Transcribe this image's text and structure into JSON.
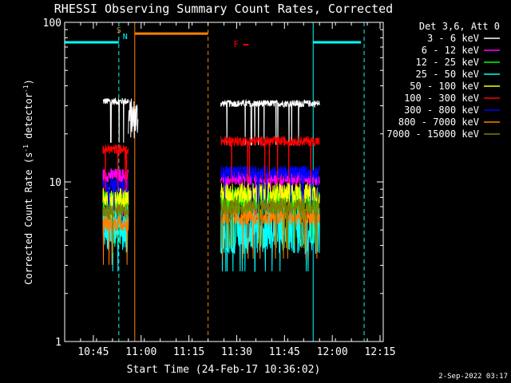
{
  "chart_data": {
    "type": "line",
    "title": "RHESSI Observing Summary Count Rates, Corrected",
    "xlabel": "Start Time (24-Feb-17 10:36:02)",
    "ylabel_main": "Corrected Count Rate (s",
    "ylabel_sup1": "-1",
    "ylabel_mid": " detector",
    "ylabel_sup2": "-1",
    "ylabel_end": ")",
    "yscale": "log",
    "ylim": [
      1,
      100
    ],
    "xlim": [
      "10:36",
      "12:16"
    ],
    "grid": false,
    "legend_placement": "top-right",
    "x_tick_labels": [
      "10:45",
      "11:00",
      "11:15",
      "11:30",
      "11:45",
      "12:00",
      "12:15"
    ],
    "y_tick_labels": [
      "1",
      "10",
      "100"
    ],
    "legend_header": "Det 3,6, Att 0",
    "series": [
      {
        "name": "3 - 6 keV",
        "color": "#ffffff",
        "segments": [
          {
            "x0": "10:48",
            "x1": "10:56",
            "level": 32,
            "noise": 0.05
          },
          {
            "x0": "10:56",
            "x1": "10:59",
            "level": 25,
            "noise": 0.3
          },
          {
            "x0": "11:25",
            "x1": "11:56",
            "level": 31,
            "noise": 0.05
          }
        ]
      },
      {
        "name": "6 - 12 keV",
        "color": "#ff00ff",
        "segments": [
          {
            "x0": "10:48",
            "x1": "10:56",
            "level": 11,
            "noise": 0.1
          },
          {
            "x0": "11:25",
            "x1": "11:56",
            "level": 10.5,
            "noise": 0.1
          }
        ]
      },
      {
        "name": "12 - 25 keV",
        "color": "#00ff00",
        "segments": [
          {
            "x0": "10:48",
            "x1": "10:56",
            "level": 7.5,
            "noise": 0.2
          },
          {
            "x0": "11:25",
            "x1": "11:56",
            "level": 7.5,
            "noise": 0.22
          }
        ]
      },
      {
        "name": "25 - 50 keV",
        "color": "#00ffff",
        "segments": [
          {
            "x0": "10:48",
            "x1": "10:56",
            "level": 5,
            "noise": 0.35
          },
          {
            "x0": "11:25",
            "x1": "11:56",
            "level": 5,
            "noise": 0.35
          }
        ]
      },
      {
        "name": "50 - 100 keV",
        "color": "#ffff00",
        "segments": [
          {
            "x0": "10:48",
            "x1": "10:56",
            "level": 8,
            "noise": 0.15
          },
          {
            "x0": "11:25",
            "x1": "11:56",
            "level": 8.5,
            "noise": 0.15
          }
        ]
      },
      {
        "name": "100 - 300 keV",
        "color": "#ff0000",
        "segments": [
          {
            "x0": "10:48",
            "x1": "10:56",
            "level": 16,
            "noise": 0.07
          },
          {
            "x0": "11:25",
            "x1": "11:56",
            "level": 18,
            "noise": 0.07
          }
        ]
      },
      {
        "name": "300 - 800 keV",
        "color": "#0000ff",
        "segments": [
          {
            "x0": "10:48",
            "x1": "10:56",
            "level": 9.5,
            "noise": 0.1
          },
          {
            "x0": "11:25",
            "x1": "11:56",
            "level": 11.5,
            "noise": 0.1
          }
        ]
      },
      {
        "name": "800 - 7000 keV",
        "color": "#ff8000",
        "segments": [
          {
            "x0": "10:48",
            "x1": "10:56",
            "level": 5.5,
            "noise": 0.12
          },
          {
            "x0": "11:25",
            "x1": "11:56",
            "level": 6,
            "noise": 0.12
          }
        ]
      },
      {
        "name": "7000 - 15000 keV",
        "color": "#808000",
        "segments": [
          {
            "x0": "10:48",
            "x1": "10:56",
            "level": 6.5,
            "noise": 0.12
          },
          {
            "x0": "11:25",
            "x1": "11:56",
            "level": 7,
            "noise": 0.12
          }
        ]
      }
    ],
    "annotations": {
      "cyan_bars": [
        {
          "x0": "10:36",
          "x1": "10:53",
          "level": 75
        },
        {
          "x0": "11:54",
          "x1": "12:09",
          "level": 75
        }
      ],
      "orange_bar": {
        "x0": "10:58",
        "x1": "11:21",
        "level": 85
      },
      "solid_cyan_vlines": [
        "10:36",
        "11:54"
      ],
      "dashed_cyan_vlines": [
        "10:53",
        "12:10"
      ],
      "solid_orange_vline": "10:58",
      "dashed_orange_vline": "11:21",
      "marker_S": {
        "text": "S",
        "x": "10:53",
        "color": "#ff8000"
      },
      "marker_N": {
        "text": "N",
        "x": "10:54",
        "color": "#00ffff"
      },
      "marker_F": {
        "text": "F",
        "x": "11:29",
        "level": 70,
        "color": "#ff0000"
      }
    }
  },
  "footer_timestamp": "2-Sep-2022 03:17"
}
